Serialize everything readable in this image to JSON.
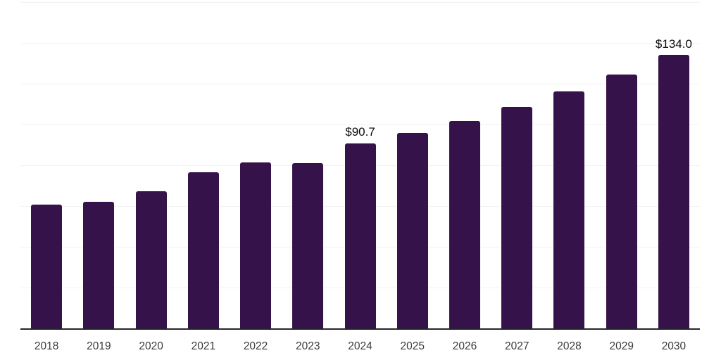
{
  "chart_colors": {
    "background": "#ffffff",
    "bar": "#35124a",
    "gridline": "#f2f2f2",
    "axis_line": "#26262b",
    "tick_label": "#3b3b3f",
    "value_label": "#0d0d0d"
  },
  "chart_data": {
    "type": "bar",
    "title": "",
    "xlabel": "",
    "ylabel": "",
    "categories": [
      "2018",
      "2019",
      "2020",
      "2021",
      "2022",
      "2023",
      "2024",
      "2025",
      "2026",
      "2027",
      "2028",
      "2029",
      "2030"
    ],
    "values": [
      60.7,
      62.1,
      67.2,
      76.6,
      81.4,
      81.2,
      90.7,
      95.9,
      101.8,
      108.6,
      116.2,
      124.5,
      134.0
    ],
    "data_labels": [
      "",
      "",
      "",
      "",
      "",
      "",
      "$90.7",
      "",
      "",
      "",
      "",
      "",
      "$134.0"
    ],
    "ylim": [
      0,
      160
    ],
    "gridline_step": 20,
    "grid": "horizontal-only",
    "y_tick_labels_visible": false,
    "legend": "none",
    "bar_corner_radius_px": 3
  }
}
